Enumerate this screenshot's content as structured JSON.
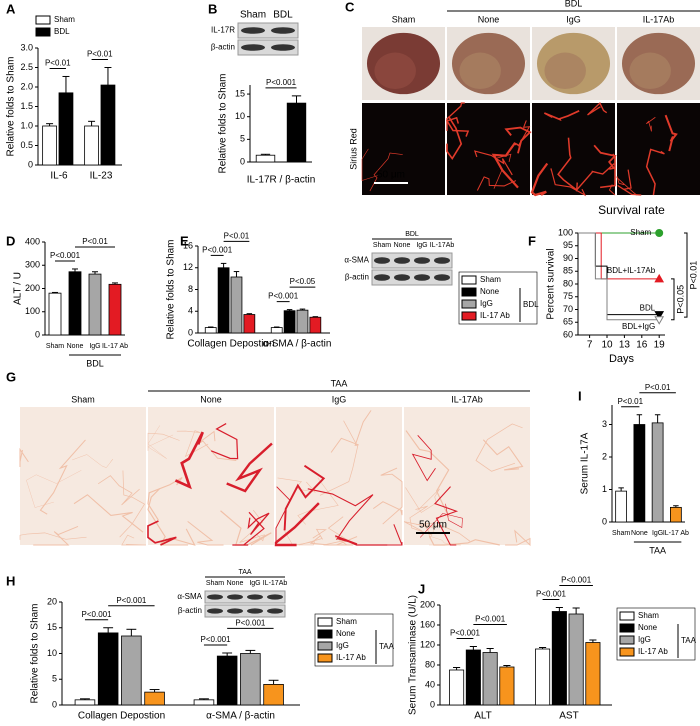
{
  "chart_data": [
    {
      "panel": "A",
      "type": "bar",
      "ylabel": "Relative folds to Sham",
      "categories": [
        "IL-6",
        "IL-23"
      ],
      "series": [
        {
          "name": "Sham",
          "color": "#ffffff",
          "values": [
            1.0,
            1.0
          ],
          "errors": [
            0.06,
            0.12
          ]
        },
        {
          "name": "BDL",
          "color": "#000000",
          "values": [
            1.85,
            2.05
          ],
          "errors": [
            0.42,
            0.45
          ]
        }
      ],
      "ylim": [
        0,
        3
      ],
      "yticks": [
        0,
        0.5,
        {
          "value": 1,
          "label": "1.0"
        },
        1.5,
        {
          "value": 2,
          "label": "2.0"
        },
        2.5,
        {
          "value": 3,
          "label": "3.0"
        }
      ],
      "annotations": [
        "P<0.01",
        "P<0.01"
      ],
      "legend": "top-left"
    },
    {
      "panel": "B",
      "type": "bar",
      "ylabel": "Relative folds to Sham",
      "xlabel": "IL-17R / β-actin",
      "categories": [
        null,
        null
      ],
      "values": [
        1.5,
        13
      ],
      "errors": [
        0.2,
        1.6
      ],
      "colors": [
        "#ffffff",
        "#000000"
      ],
      "ylim": [
        0,
        17
      ],
      "yticks": [
        0,
        5,
        10,
        15
      ],
      "annotations": [
        "P<0.001"
      ],
      "blot": {
        "lanes": [
          "Sham",
          "BDL"
        ],
        "rows": [
          "IL-17R",
          "β-actin"
        ]
      }
    },
    {
      "panel": "D",
      "type": "bar",
      "ylabel": "ALT / U",
      "categories": [
        "Sham",
        "None",
        "IgG",
        "IL-17 Ab"
      ],
      "values": [
        180,
        272,
        262,
        218
      ],
      "errors": [
        3,
        12,
        10,
        6
      ],
      "colors": [
        "#ffffff",
        "#000000",
        "#a6a6a6",
        "#e31b23"
      ],
      "ylim": [
        0,
        400
      ],
      "yticks": [
        0,
        100,
        200,
        300,
        400
      ],
      "group_label": "BDL",
      "annotations": [
        "P<0.001",
        "P<0.01"
      ]
    },
    {
      "panel": "E",
      "type": "bar",
      "ylabel": "Relative folds to Sham",
      "categories": [
        "Collagen Depostion",
        "α-SMA / β-actin"
      ],
      "series": [
        {
          "name": "Sham",
          "color": "#ffffff",
          "values": [
            1,
            1
          ],
          "errors": [
            0.1,
            0.1
          ]
        },
        {
          "name": "None",
          "color": "#000000",
          "values": [
            12,
            4.1
          ],
          "errors": [
            0.8,
            0.2
          ]
        },
        {
          "name": "IgG",
          "color": "#a6a6a6",
          "values": [
            10.3,
            4.2
          ],
          "errors": [
            1,
            0.2
          ]
        },
        {
          "name": "IL-17 Ab",
          "color": "#e31b23",
          "values": [
            3.4,
            2.9
          ],
          "errors": [
            0.15,
            0.1
          ]
        }
      ],
      "ylim": [
        0,
        16
      ],
      "yticks": [
        0,
        4,
        8,
        12,
        16
      ],
      "annotations": [
        "P<0.001",
        "P<0.01",
        "P<0.001",
        "P<0.05"
      ],
      "legend": "right",
      "group_label": "BDL",
      "blot": {
        "group": "BDL",
        "lanes": [
          "Sham",
          "None",
          "IgG",
          "IL-17Ab"
        ],
        "rows": [
          "α-SMA",
          "β-actin"
        ]
      }
    },
    {
      "panel": "F",
      "type": "line",
      "title": "Survival rate",
      "xlabel": "Days",
      "ylabel": "Percent survival",
      "xlim": [
        5,
        20
      ],
      "xticks": [
        7,
        10,
        13,
        16,
        19
      ],
      "ylim": [
        60,
        100
      ],
      "yticks": [
        60,
        65,
        70,
        75,
        80,
        85,
        90,
        95,
        100
      ],
      "series": [
        {
          "name": "Sham",
          "color": "#2ca02c",
          "marker": "circle",
          "x": [
            5,
            19
          ],
          "values": [
            100,
            100
          ]
        },
        {
          "name": "BDL+IL-17Ab",
          "color": "#e31b23",
          "marker": "triangle",
          "x": [
            5,
            9,
            9,
            19
          ],
          "values": [
            100,
            100,
            82,
            82
          ]
        },
        {
          "name": "BDL",
          "color": "#000000",
          "marker": "down-triangle",
          "x": [
            5,
            8,
            8,
            10,
            10,
            19
          ],
          "values": [
            100,
            100,
            87,
            87,
            68,
            68
          ]
        },
        {
          "name": "BDL+IgG",
          "color": "#808080",
          "marker": "open-down-triangle",
          "x": [
            5,
            8,
            8,
            10,
            10,
            19
          ],
          "values": [
            100,
            100,
            82,
            82,
            66,
            66
          ]
        }
      ],
      "annotations": [
        "P<0.01",
        "P<0.05"
      ]
    },
    {
      "panel": "I",
      "type": "bar",
      "ylabel": "Serum IL-17A",
      "categories": [
        "Sham",
        "None",
        "IgG",
        "IL-17 Ab"
      ],
      "values": [
        0.95,
        3.0,
        3.05,
        0.45
      ],
      "errors": [
        0.1,
        0.3,
        0.25,
        0.05
      ],
      "colors": [
        "#ffffff",
        "#000000",
        "#a6a6a6",
        "#f7941d"
      ],
      "ylim": [
        0,
        3.6
      ],
      "yticks": [
        0,
        1,
        2,
        3
      ],
      "group_label": "TAA",
      "annotations": [
        "P<0.01",
        "P<0.01"
      ]
    },
    {
      "panel": "H",
      "type": "bar",
      "ylabel": "Relative folds to Sham",
      "categories": [
        "Collagen Depostion",
        "α-SMA / β-actin"
      ],
      "series": [
        {
          "name": "Sham",
          "color": "#ffffff",
          "values": [
            1,
            1
          ],
          "errors": [
            0.2,
            0.2
          ]
        },
        {
          "name": "None",
          "color": "#000000",
          "values": [
            14,
            9.5
          ],
          "errors": [
            1,
            0.6
          ]
        },
        {
          "name": "IgG",
          "color": "#a6a6a6",
          "values": [
            13.4,
            10
          ],
          "errors": [
            1.3,
            0.6
          ]
        },
        {
          "name": "IL-17 Ab",
          "color": "#f7941d",
          "values": [
            2.5,
            4
          ],
          "errors": [
            0.5,
            0.8
          ]
        }
      ],
      "ylim": [
        0,
        20
      ],
      "yticks": [
        0,
        5,
        10,
        15,
        20
      ],
      "annotations": [
        "P<0.001",
        "P<0.001",
        "P<0.001",
        "P<0.001"
      ],
      "legend": "right",
      "group_label": "TAA",
      "blot": {
        "group": "TAA",
        "lanes": [
          "Sham",
          "None",
          "IgG",
          "IL-17Ab"
        ],
        "rows": [
          "α-SMA",
          "β-actin"
        ]
      }
    },
    {
      "panel": "J",
      "type": "bar",
      "ylabel": "Serum Transaminase (U/L)",
      "categories": [
        "ALT",
        "AST"
      ],
      "series": [
        {
          "name": "Sham",
          "color": "#ffffff",
          "values": [
            70,
            112
          ],
          "errors": [
            5,
            3
          ]
        },
        {
          "name": "None",
          "color": "#000000",
          "values": [
            110,
            187
          ],
          "errors": [
            7,
            8
          ]
        },
        {
          "name": "IgG",
          "color": "#a6a6a6",
          "values": [
            105,
            182
          ],
          "errors": [
            8,
            12
          ]
        },
        {
          "name": "IL-17 Ab",
          "color": "#f7941d",
          "values": [
            76,
            125
          ],
          "errors": [
            3,
            5
          ]
        }
      ],
      "ylim": [
        0,
        200
      ],
      "yticks": [
        0,
        40,
        80,
        120,
        160,
        200
      ],
      "annotations": [
        "P<0.001",
        "P<0.001",
        "P<0.001",
        "P<0.001"
      ],
      "legend": "right",
      "group_label": "TAA"
    }
  ],
  "images": [
    {
      "panel": "C",
      "group": "BDL",
      "columns": [
        "Sham",
        "None",
        "IgG",
        "IL-17Ab"
      ],
      "row_label": "Sirius Red",
      "scale_bar": "50 μm"
    },
    {
      "panel": "G",
      "group": "TAA",
      "columns": [
        "Sham",
        "None",
        "IgG",
        "IL-17Ab"
      ],
      "scale_bar": "50 μm"
    }
  ]
}
